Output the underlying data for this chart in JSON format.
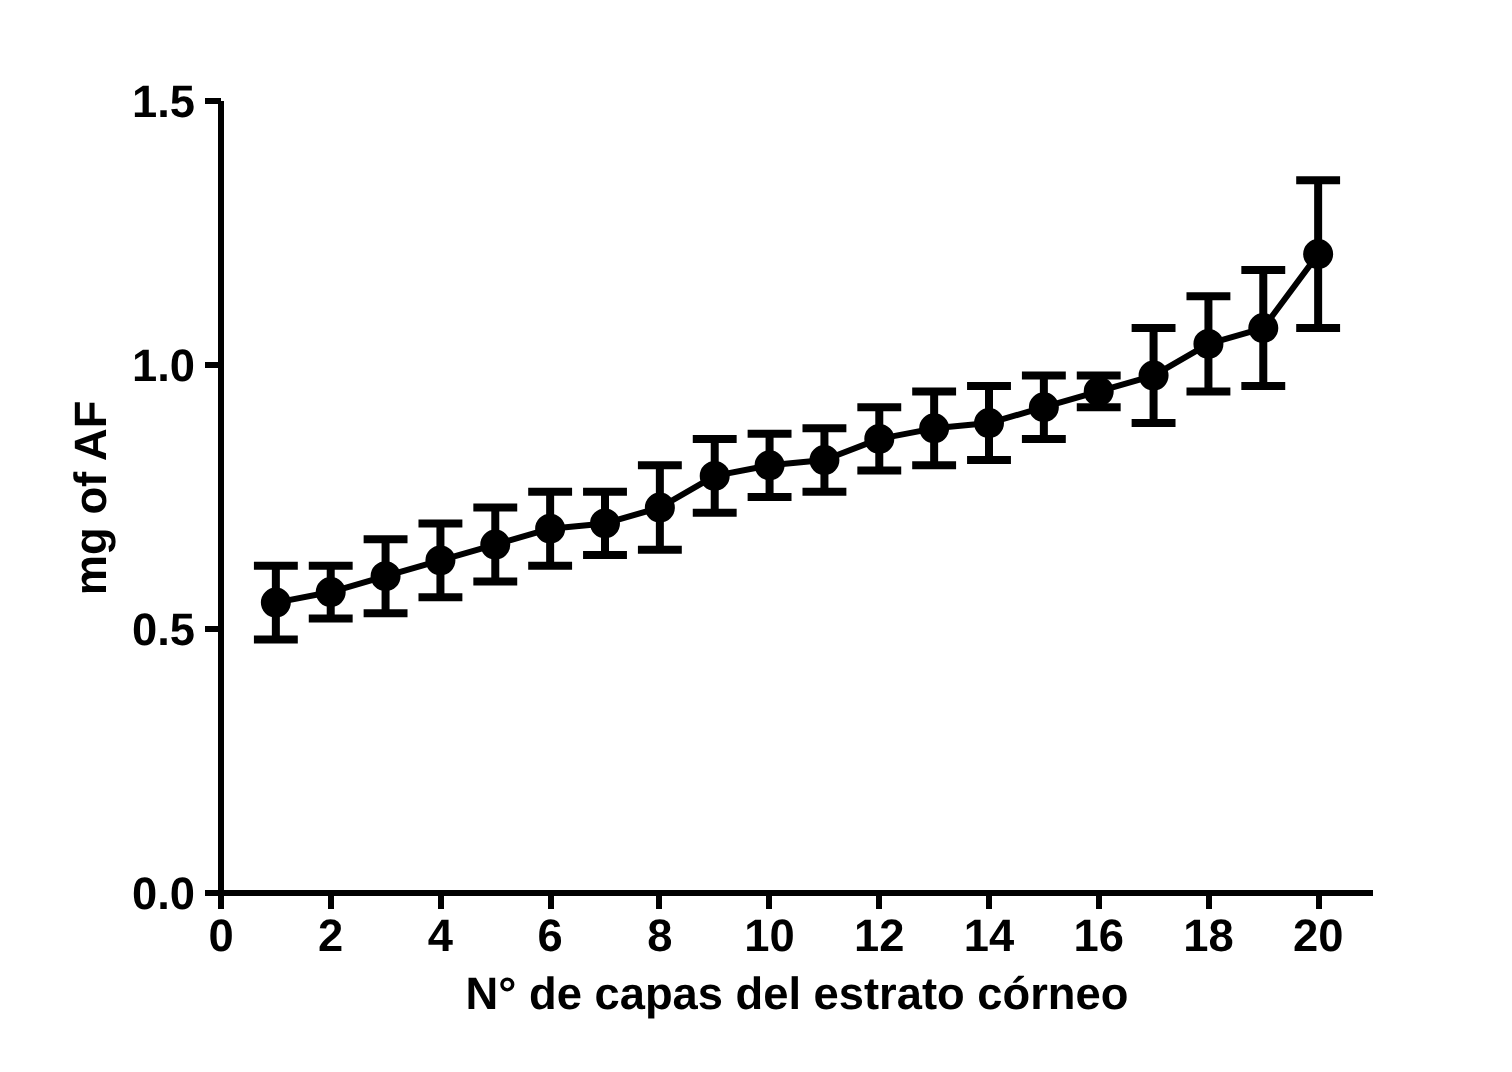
{
  "chart_data": {
    "type": "line",
    "xlabel": "N° de capas del estrato córneo",
    "ylabel": "mg of AF",
    "x": [
      1,
      2,
      3,
      4,
      5,
      6,
      7,
      8,
      9,
      10,
      11,
      12,
      13,
      14,
      15,
      16,
      17,
      18,
      19,
      20
    ],
    "series": [
      {
        "color": "#000000",
        "values": [
          0.55,
          0.57,
          0.6,
          0.63,
          0.66,
          0.69,
          0.7,
          0.73,
          0.79,
          0.81,
          0.82,
          0.86,
          0.88,
          0.89,
          0.92,
          0.95,
          0.98,
          1.04,
          1.07,
          1.21
        ],
        "errors": [
          0.07,
          0.05,
          0.07,
          0.07,
          0.07,
          0.07,
          0.06,
          0.08,
          0.07,
          0.06,
          0.06,
          0.06,
          0.07,
          0.07,
          0.06,
          0.03,
          0.09,
          0.09,
          0.11,
          0.14
        ]
      }
    ],
    "xlim": [
      0,
      21
    ],
    "ylim": [
      0,
      1.5
    ],
    "xticks": [
      0,
      2,
      4,
      6,
      8,
      10,
      12,
      14,
      16,
      18,
      20
    ],
    "yticks": [
      {
        "value": 0,
        "label": "0.0"
      },
      0.5,
      {
        "value": 1,
        "label": "1.0"
      },
      1.5
    ],
    "grid": false,
    "marker": "circle",
    "line_style": "solid"
  }
}
